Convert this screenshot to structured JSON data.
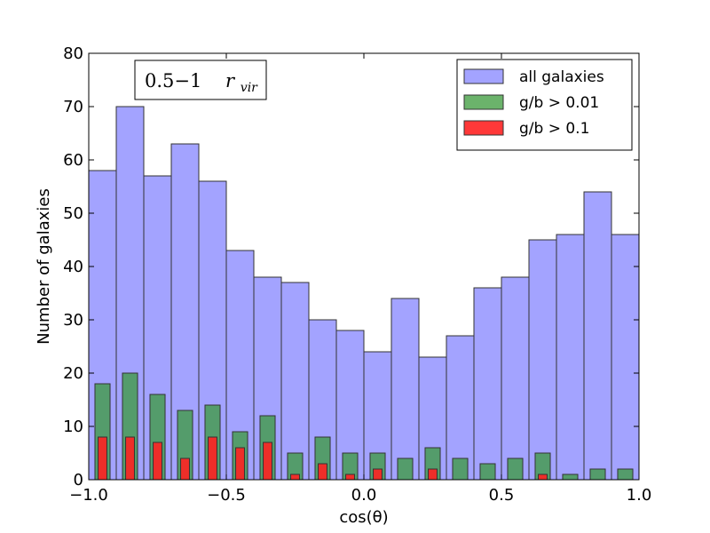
{
  "chart_data": {
    "type": "bar",
    "title": "",
    "xlabel": "cos(θ)",
    "ylabel": "Number of galaxies",
    "xlim": [
      -1.0,
      1.0
    ],
    "ylim": [
      0,
      80
    ],
    "xticks": [
      -1.0,
      -0.5,
      0.0,
      0.5,
      1.0
    ],
    "xtick_labels": [
      "−1.0",
      "−0.5",
      "0.0",
      "0.5",
      "1.0"
    ],
    "yticks": [
      0,
      10,
      20,
      30,
      40,
      50,
      60,
      70,
      80
    ],
    "ytick_labels": [
      "0",
      "10",
      "20",
      "30",
      "40",
      "50",
      "60",
      "70",
      "80"
    ],
    "bin_centers": [
      -0.95,
      -0.85,
      -0.75,
      -0.65,
      -0.55,
      -0.45,
      -0.35,
      -0.25,
      -0.15,
      -0.05,
      0.05,
      0.15,
      0.25,
      0.35,
      0.45,
      0.55,
      0.65,
      0.75,
      0.85,
      0.95
    ],
    "series": [
      {
        "name": "all galaxies",
        "color": "#9999ff",
        "values": [
          58,
          70,
          57,
          63,
          56,
          43,
          38,
          37,
          30,
          28,
          24,
          34,
          23,
          27,
          36,
          38,
          45,
          46,
          54,
          46
        ]
      },
      {
        "name": "g/b > 0.01",
        "color": "#3a9a3a",
        "values": [
          18,
          20,
          16,
          13,
          14,
          9,
          12,
          5,
          8,
          5,
          5,
          4,
          6,
          4,
          3,
          4,
          5,
          1,
          2,
          2
        ]
      },
      {
        "name": "g/b > 0.1",
        "color": "#ff2222",
        "values": [
          8,
          8,
          7,
          4,
          8,
          6,
          7,
          1,
          3,
          1,
          2,
          0,
          2,
          0,
          0,
          0,
          1,
          0,
          0,
          0
        ]
      }
    ],
    "legend_position": "top-right",
    "annotation": {
      "range": "0.5−1",
      "symbol": "r",
      "subscript": "vir"
    }
  }
}
